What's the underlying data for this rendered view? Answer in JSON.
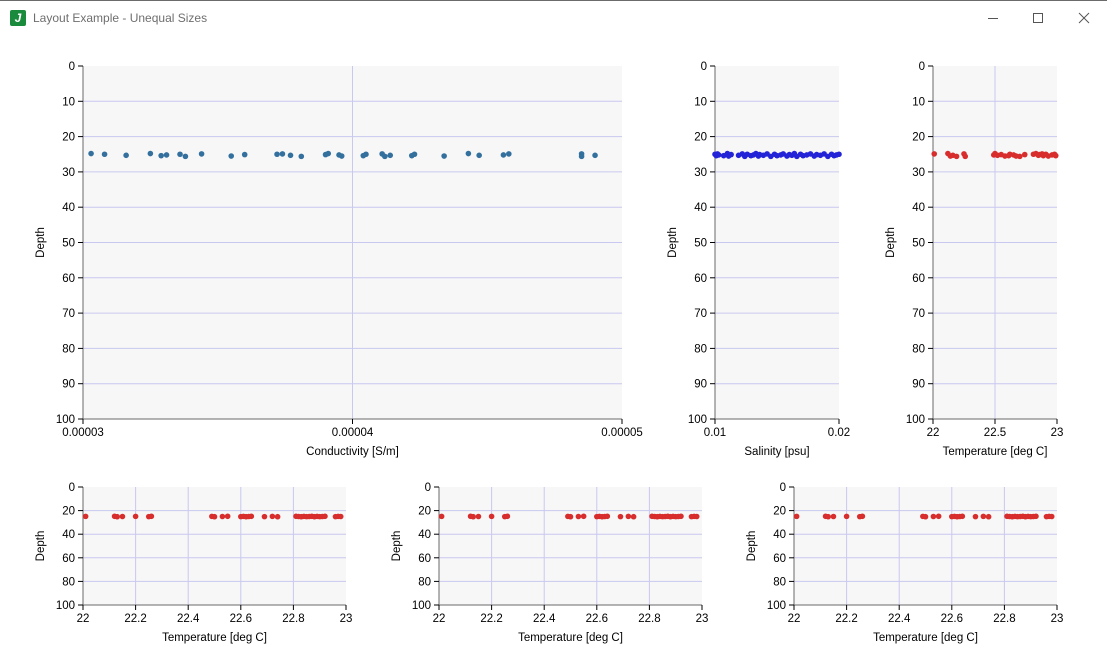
{
  "window": {
    "title": "Layout Example - Unequal Sizes",
    "icon": "j-app-icon",
    "controls": [
      "minimize",
      "maximize",
      "close"
    ]
  },
  "colors": {
    "plot_background": "#f7f7f7",
    "grid": "#c9c8f0",
    "conductivity_points": "#33709e",
    "salinity_points": "#2323d8",
    "temperature_points": "#d82d2d"
  },
  "chart_data": [
    {
      "id": "conductivity",
      "type": "scatter",
      "xlabel": "Conductivity [S/m]",
      "ylabel": "Depth",
      "xlim": [
        3e-05,
        5e-05
      ],
      "ylim": [
        0,
        100
      ],
      "y_inverted": true,
      "x_ticks": [
        "0.00003",
        "0.00004",
        "0.00005"
      ],
      "x_tick_values": [
        3e-05,
        4e-05,
        5e-05
      ],
      "x_grid_values": [
        4e-05
      ],
      "y_ticks": [
        0,
        10,
        20,
        30,
        40,
        50,
        60,
        70,
        80,
        90,
        100
      ],
      "y_grid_values": [
        10,
        20,
        30,
        40,
        50,
        60,
        70,
        80,
        90
      ],
      "color": "#33709e",
      "x": [
        3.03e-05,
        3.08e-05,
        3.16e-05,
        3.25e-05,
        3.29e-05,
        3.31e-05,
        3.36e-05,
        3.38e-05,
        3.44e-05,
        3.55e-05,
        3.6e-05,
        3.72e-05,
        3.74e-05,
        3.77e-05,
        3.81e-05,
        3.9e-05,
        3.91e-05,
        3.95e-05,
        3.96e-05,
        4.04e-05,
        4.05e-05,
        4.11e-05,
        4.12e-05,
        4.14e-05,
        4.22e-05,
        4.23e-05,
        4.34e-05,
        4.43e-05,
        4.47e-05,
        4.56e-05,
        4.58e-05,
        4.85e-05,
        4.85e-05,
        4.9e-05
      ],
      "y": [
        24.8,
        25.0,
        25.3,
        24.8,
        25.4,
        25.2,
        25.0,
        25.6,
        24.9,
        25.5,
        25.1,
        25.0,
        24.9,
        25.3,
        25.6,
        25.1,
        24.8,
        25.2,
        25.5,
        25.4,
        25.0,
        24.9,
        25.6,
        25.3,
        25.4,
        25.0,
        25.5,
        24.8,
        25.3,
        25.2,
        24.9,
        24.9,
        25.6,
        25.3
      ]
    },
    {
      "id": "salinity",
      "type": "scatter",
      "xlabel": "Salinity [psu]",
      "ylabel": "Depth",
      "xlim": [
        0.01,
        0.02
      ],
      "ylim": [
        0,
        100
      ],
      "y_inverted": true,
      "x_ticks": [
        "0.01",
        "0.02"
      ],
      "x_tick_values": [
        0.01,
        0.02
      ],
      "x_grid_values": [],
      "y_ticks": [
        0,
        10,
        20,
        30,
        40,
        50,
        60,
        70,
        80,
        90,
        100
      ],
      "y_grid_values": [
        10,
        20,
        30,
        40,
        50,
        60,
        70,
        80,
        90
      ],
      "color": "#2323d8",
      "x": [
        0.01,
        0.0101,
        0.0102,
        0.0103,
        0.0107,
        0.011,
        0.0111,
        0.0113,
        0.0119,
        0.0122,
        0.0124,
        0.0126,
        0.0129,
        0.0131,
        0.0133,
        0.0135,
        0.0136,
        0.0139,
        0.0142,
        0.0145,
        0.0148,
        0.015,
        0.0153,
        0.0155,
        0.0158,
        0.016,
        0.0162,
        0.0164,
        0.0166,
        0.0169,
        0.0171,
        0.0174,
        0.0177,
        0.018,
        0.0182,
        0.0185,
        0.0188,
        0.0191,
        0.0194,
        0.0196,
        0.0198,
        0.02
      ],
      "y": [
        25.0,
        25.4,
        24.9,
        25.2,
        25.4,
        24.8,
        25.5,
        25.1,
        25.3,
        24.9,
        25.6,
        25.0,
        25.4,
        25.2,
        24.8,
        25.5,
        25.1,
        25.3,
        24.9,
        25.6,
        25.0,
        25.4,
        25.2,
        24.9,
        25.5,
        25.1,
        25.3,
        24.8,
        25.6,
        25.0,
        25.4,
        25.2,
        24.9,
        25.5,
        25.1,
        25.3,
        24.9,
        25.6,
        25.0,
        25.4,
        25.2,
        25.0
      ]
    },
    {
      "id": "temperature-1",
      "type": "scatter",
      "xlabel": "Temperature [deg C]",
      "ylabel": "Depth",
      "xlim": [
        22,
        23
      ],
      "ylim": [
        0,
        100
      ],
      "y_inverted": true,
      "x_ticks": [
        "22",
        "22.5",
        "23"
      ],
      "x_tick_values": [
        22,
        22.5,
        23
      ],
      "x_grid_values": [
        22.5
      ],
      "y_ticks": [
        0,
        10,
        20,
        30,
        40,
        50,
        60,
        70,
        80,
        90,
        100
      ],
      "y_grid_values": [
        10,
        20,
        30,
        40,
        50,
        60,
        70,
        80,
        90
      ],
      "color": "#d82d2d",
      "x": [
        22.01,
        22.12,
        22.14,
        22.16,
        22.19,
        22.25,
        22.26,
        22.49,
        22.5,
        22.52,
        22.55,
        22.58,
        22.61,
        22.62,
        22.65,
        22.67,
        22.7,
        22.74,
        22.81,
        22.83,
        22.85,
        22.86,
        22.88,
        22.89,
        22.91,
        22.93,
        22.96,
        22.98,
        22.99
      ],
      "y": [
        24.9,
        24.8,
        25.5,
        25.3,
        25.6,
        24.9,
        25.6,
        25.2,
        24.8,
        25.3,
        25.1,
        25.5,
        25.4,
        25.0,
        25.2,
        25.5,
        25.6,
        25.1,
        25.0,
        24.8,
        25.3,
        25.1,
        24.9,
        25.4,
        25.0,
        25.5,
        25.2,
        25.0,
        25.4
      ]
    },
    {
      "id": "temperature-2",
      "type": "scatter",
      "xlabel": "Temperature [deg C]",
      "ylabel": "Depth",
      "xlim": [
        22,
        23
      ],
      "ylim": [
        0,
        100
      ],
      "y_inverted": true,
      "x_ticks": [
        "22",
        "22.2",
        "22.4",
        "22.6",
        "22.8",
        "23"
      ],
      "x_tick_values": [
        22,
        22.2,
        22.4,
        22.6,
        22.8,
        23
      ],
      "x_grid_values": [
        22.2,
        22.4,
        22.6,
        22.8
      ],
      "y_ticks": [
        0,
        20,
        40,
        60,
        80,
        100
      ],
      "y_grid_values": [
        20,
        40,
        60,
        80
      ],
      "color": "#d82d2d",
      "x": [
        22.01,
        22.12,
        22.13,
        22.15,
        22.2,
        22.25,
        22.26,
        22.49,
        22.5,
        22.53,
        22.55,
        22.6,
        22.61,
        22.62,
        22.63,
        22.64,
        22.69,
        22.72,
        22.74,
        22.81,
        22.82,
        22.83,
        22.84,
        22.85,
        22.86,
        22.87,
        22.88,
        22.89,
        22.9,
        22.91,
        22.92,
        22.96,
        22.97,
        22.98
      ],
      "y": [
        24.9,
        24.8,
        25.2,
        25.0,
        24.9,
        25.1,
        24.8,
        24.9,
        25.2,
        25.0,
        24.8,
        25.1,
        24.9,
        25.2,
        25.0,
        24.8,
        25.1,
        24.9,
        25.2,
        24.8,
        25.0,
        25.2,
        24.9,
        25.1,
        25.0,
        24.8,
        25.2,
        24.9,
        25.1,
        25.0,
        24.8,
        25.1,
        24.9,
        25.0
      ]
    },
    {
      "id": "temperature-3",
      "type": "scatter",
      "xlabel": "Temperature [deg C]",
      "ylabel": "Depth",
      "xlim": [
        22,
        23
      ],
      "ylim": [
        0,
        100
      ],
      "y_inverted": true,
      "x_ticks": [
        "22",
        "22.2",
        "22.4",
        "22.6",
        "22.8",
        "23"
      ],
      "x_tick_values": [
        22,
        22.2,
        22.4,
        22.6,
        22.8,
        23
      ],
      "x_grid_values": [
        22.2,
        22.4,
        22.6,
        22.8
      ],
      "y_ticks": [
        0,
        20,
        40,
        60,
        80,
        100
      ],
      "y_grid_values": [
        20,
        40,
        60,
        80
      ],
      "color": "#d82d2d",
      "x": [
        22.01,
        22.12,
        22.13,
        22.15,
        22.2,
        22.25,
        22.26,
        22.49,
        22.5,
        22.53,
        22.55,
        22.6,
        22.61,
        22.62,
        22.63,
        22.64,
        22.69,
        22.72,
        22.74,
        22.81,
        22.82,
        22.83,
        22.84,
        22.85,
        22.86,
        22.87,
        22.88,
        22.89,
        22.9,
        22.91,
        22.92,
        22.96,
        22.97,
        22.98
      ],
      "y": [
        24.9,
        24.8,
        25.2,
        25.0,
        24.9,
        25.1,
        24.8,
        24.9,
        25.2,
        25.0,
        24.8,
        25.1,
        24.9,
        25.2,
        25.0,
        24.8,
        25.1,
        24.9,
        25.2,
        24.8,
        25.0,
        25.2,
        24.9,
        25.1,
        25.0,
        24.8,
        25.2,
        24.9,
        25.1,
        25.0,
        24.8,
        25.1,
        24.9,
        25.0
      ]
    },
    {
      "id": "temperature-4",
      "type": "scatter",
      "xlabel": "Temperature [deg C]",
      "ylabel": "Depth",
      "xlim": [
        22,
        23
      ],
      "ylim": [
        0,
        100
      ],
      "y_inverted": true,
      "x_ticks": [
        "22",
        "22.2",
        "22.4",
        "22.6",
        "22.8",
        "23"
      ],
      "x_tick_values": [
        22,
        22.2,
        22.4,
        22.6,
        22.8,
        23
      ],
      "x_grid_values": [
        22.2,
        22.4,
        22.6,
        22.8
      ],
      "y_ticks": [
        0,
        20,
        40,
        60,
        80,
        100
      ],
      "y_grid_values": [
        20,
        40,
        60,
        80
      ],
      "color": "#d82d2d",
      "x": [
        22.01,
        22.12,
        22.13,
        22.15,
        22.2,
        22.25,
        22.26,
        22.49,
        22.5,
        22.53,
        22.55,
        22.6,
        22.61,
        22.62,
        22.63,
        22.64,
        22.69,
        22.72,
        22.74,
        22.81,
        22.82,
        22.83,
        22.84,
        22.85,
        22.86,
        22.87,
        22.88,
        22.89,
        22.9,
        22.91,
        22.92,
        22.96,
        22.97,
        22.98
      ],
      "y": [
        24.9,
        24.8,
        25.2,
        25.0,
        24.9,
        25.1,
        24.8,
        24.9,
        25.2,
        25.0,
        24.8,
        25.1,
        24.9,
        25.2,
        25.0,
        24.8,
        25.1,
        24.9,
        25.2,
        24.8,
        25.0,
        25.2,
        24.9,
        25.1,
        25.0,
        24.8,
        25.2,
        24.9,
        25.1,
        25.0,
        24.8,
        25.1,
        24.9,
        25.0
      ]
    }
  ]
}
